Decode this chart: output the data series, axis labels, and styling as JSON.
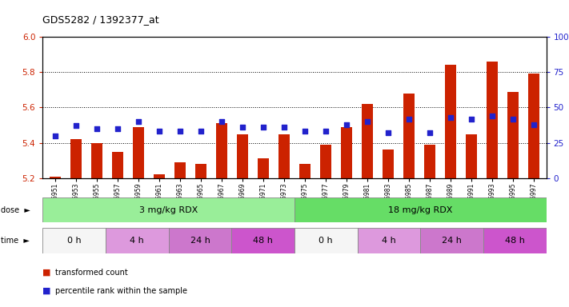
{
  "title": "GDS5282 / 1392377_at",
  "samples": [
    "GSM306951",
    "GSM306953",
    "GSM306955",
    "GSM306957",
    "GSM306959",
    "GSM306961",
    "GSM306963",
    "GSM306965",
    "GSM306967",
    "GSM306969",
    "GSM306971",
    "GSM306973",
    "GSM306975",
    "GSM306977",
    "GSM306979",
    "GSM306981",
    "GSM306983",
    "GSM306985",
    "GSM306987",
    "GSM306989",
    "GSM306991",
    "GSM306993",
    "GSM306995",
    "GSM306997"
  ],
  "bar_values": [
    5.21,
    5.42,
    5.4,
    5.35,
    5.49,
    5.22,
    5.29,
    5.28,
    5.51,
    5.45,
    5.31,
    5.45,
    5.28,
    5.39,
    5.49,
    5.62,
    5.36,
    5.68,
    5.39,
    5.84,
    5.45,
    5.86,
    5.69,
    5.79
  ],
  "dot_values": [
    30,
    37,
    35,
    35,
    40,
    33,
    33,
    33,
    40,
    36,
    36,
    36,
    33,
    33,
    38,
    40,
    32,
    42,
    32,
    43,
    42,
    44,
    42,
    38
  ],
  "ylim_left": [
    5.2,
    6.0
  ],
  "ylim_right": [
    0,
    100
  ],
  "yticks_left": [
    5.2,
    5.4,
    5.6,
    5.8,
    6.0
  ],
  "yticks_right": [
    0,
    25,
    50,
    75,
    100
  ],
  "bar_color": "#cc2200",
  "dot_color": "#2222cc",
  "dose_groups": [
    {
      "label": "3 mg/kg RDX",
      "start": 0,
      "end": 12,
      "color": "#99ee99"
    },
    {
      "label": "18 mg/kg RDX",
      "start": 12,
      "end": 24,
      "color": "#66dd66"
    }
  ],
  "time_groups": [
    {
      "label": "0 h",
      "start": 0,
      "end": 3,
      "color": "#f5f5f5"
    },
    {
      "label": "4 h",
      "start": 3,
      "end": 6,
      "color": "#dd99dd"
    },
    {
      "label": "24 h",
      "start": 6,
      "end": 9,
      "color": "#cc77cc"
    },
    {
      "label": "48 h",
      "start": 9,
      "end": 12,
      "color": "#cc55cc"
    },
    {
      "label": "0 h",
      "start": 12,
      "end": 15,
      "color": "#f5f5f5"
    },
    {
      "label": "4 h",
      "start": 15,
      "end": 18,
      "color": "#dd99dd"
    },
    {
      "label": "24 h",
      "start": 18,
      "end": 21,
      "color": "#cc77cc"
    },
    {
      "label": "48 h",
      "start": 21,
      "end": 24,
      "color": "#cc55cc"
    }
  ],
  "legend_bar_label": "transformed count",
  "legend_dot_label": "percentile rank within the sample",
  "left_tick_color": "#cc2200",
  "right_tick_color": "#2222cc"
}
